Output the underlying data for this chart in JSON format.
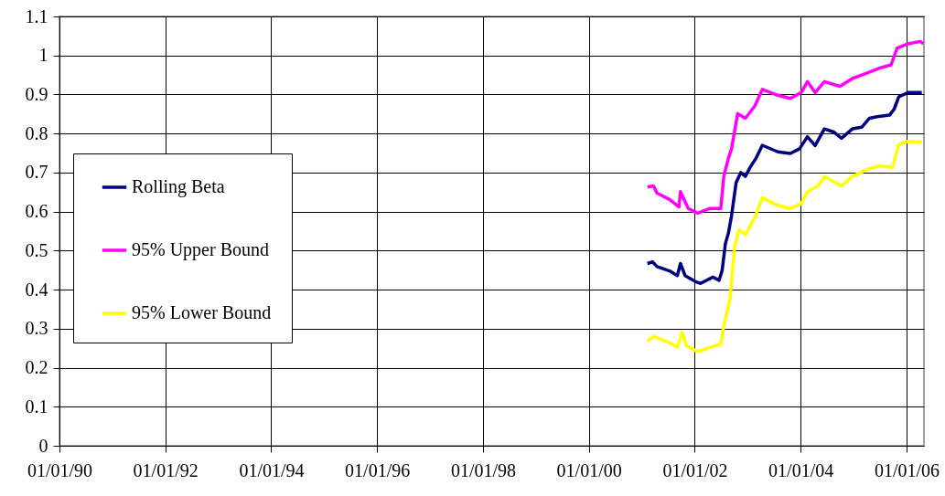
{
  "chart_data": {
    "type": "line",
    "legend": "left",
    "grid": true,
    "line_style": "solid",
    "xlim": [
      "1990-01-01",
      "2006-05-01"
    ],
    "xticks": [
      {
        "value": "1990-01-01",
        "label": "01/01/90"
      },
      {
        "value": "1992-01-01",
        "label": "01/01/92"
      },
      {
        "value": "1994-01-01",
        "label": "01/01/94"
      },
      {
        "value": "1996-01-01",
        "label": "01/01/96"
      },
      {
        "value": "1998-01-01",
        "label": "01/01/98"
      },
      {
        "value": "2000-01-01",
        "label": "01/01/00"
      },
      {
        "value": "2002-01-01",
        "label": "01/01/02"
      },
      {
        "value": "2004-01-01",
        "label": "01/01/04"
      },
      {
        "value": "2006-01-01",
        "label": "01/01/06"
      }
    ],
    "ylim": [
      0,
      1.1
    ],
    "yticks": [
      0,
      0.1,
      0.2,
      0.3,
      0.4,
      0.5,
      0.6,
      0.7,
      0.8,
      0.9,
      1,
      1.1
    ],
    "series": [
      {
        "name": "Rolling Beta",
        "color": "#000080",
        "x": [
          "2001-02-08",
          "2001-03-16",
          "2001-04-16",
          "2001-07-11",
          "2001-09-03",
          "2001-09-24",
          "2001-10-26",
          "2002-01-09",
          "2002-02-10",
          "2002-05-06",
          "2002-06-18",
          "2002-07-09",
          "2002-07-31",
          "2002-08-21",
          "2002-09-11",
          "2002-10-13",
          "2002-11-14",
          "2002-12-16",
          "2003-01-17",
          "2003-02-28",
          "2003-04-12",
          "2003-07-28",
          "2003-10-22",
          "2003-12-25",
          "2004-02-17",
          "2004-04-10",
          "2004-06-13",
          "2004-08-16",
          "2004-10-09",
          "2004-12-23",
          "2005-02-25",
          "2005-04-19",
          "2005-06-11",
          "2005-09-05",
          "2005-10-07",
          "2005-11-08",
          "2006-01-11",
          "2006-04-16"
        ],
        "values": [
          0.467,
          0.471,
          0.459,
          0.448,
          0.436,
          0.467,
          0.436,
          0.42,
          0.416,
          0.432,
          0.424,
          0.45,
          0.518,
          0.545,
          0.588,
          0.674,
          0.7,
          0.69,
          0.713,
          0.737,
          0.77,
          0.753,
          0.749,
          0.761,
          0.792,
          0.769,
          0.812,
          0.804,
          0.788,
          0.812,
          0.816,
          0.839,
          0.843,
          0.847,
          0.862,
          0.894,
          0.905,
          0.905
        ]
      },
      {
        "name": "95% Upper Bound",
        "color": "#ff00ff",
        "x": [
          "2001-02-08",
          "2001-03-22",
          "2001-04-16",
          "2001-07-11",
          "2001-09-14",
          "2001-09-24",
          "2001-11-17",
          "2002-01-20",
          "2002-04-15",
          "2002-06-29",
          "2002-07-20",
          "2002-08-21",
          "2002-09-11",
          "2002-10-24",
          "2002-12-16",
          "2003-02-18",
          "2003-04-12",
          "2003-07-28",
          "2003-10-22",
          "2004-01-05",
          "2004-02-17",
          "2004-04-10",
          "2004-06-13",
          "2004-09-28",
          "2004-12-23",
          "2005-04-09",
          "2005-07-02",
          "2005-09-16",
          "2005-10-28",
          "2006-01-11",
          "2006-04-06",
          "2006-04-27"
        ],
        "values": [
          0.663,
          0.666,
          0.647,
          0.631,
          0.612,
          0.651,
          0.608,
          0.596,
          0.608,
          0.608,
          0.69,
          0.737,
          0.76,
          0.851,
          0.839,
          0.87,
          0.913,
          0.898,
          0.89,
          0.905,
          0.933,
          0.905,
          0.933,
          0.921,
          0.941,
          0.956,
          0.968,
          0.976,
          1.019,
          1.03,
          1.036,
          1.03
        ]
      },
      {
        "name": "95% Lower Bound",
        "color": "#ffff00",
        "x": [
          "2001-02-08",
          "2001-03-22",
          "2001-07-11",
          "2001-09-03",
          "2001-10-05",
          "2001-11-06",
          "2002-01-20",
          "2002-04-15",
          "2002-06-29",
          "2002-07-20",
          "2002-09-01",
          "2002-10-02",
          "2002-11-03",
          "2002-12-16",
          "2003-02-18",
          "2003-04-12",
          "2003-07-28",
          "2003-10-22",
          "2004-01-05",
          "2004-02-17",
          "2004-05-01",
          "2004-06-13",
          "2004-10-09",
          "2004-12-23",
          "2005-04-09",
          "2005-07-02",
          "2005-09-26",
          "2005-11-08",
          "2006-01-11",
          "2006-04-16"
        ],
        "values": [
          0.268,
          0.28,
          0.264,
          0.252,
          0.291,
          0.256,
          0.241,
          0.252,
          0.26,
          0.307,
          0.377,
          0.51,
          0.553,
          0.541,
          0.584,
          0.635,
          0.616,
          0.608,
          0.62,
          0.651,
          0.666,
          0.69,
          0.666,
          0.69,
          0.709,
          0.717,
          0.713,
          0.772,
          0.78,
          0.777
        ]
      }
    ]
  }
}
